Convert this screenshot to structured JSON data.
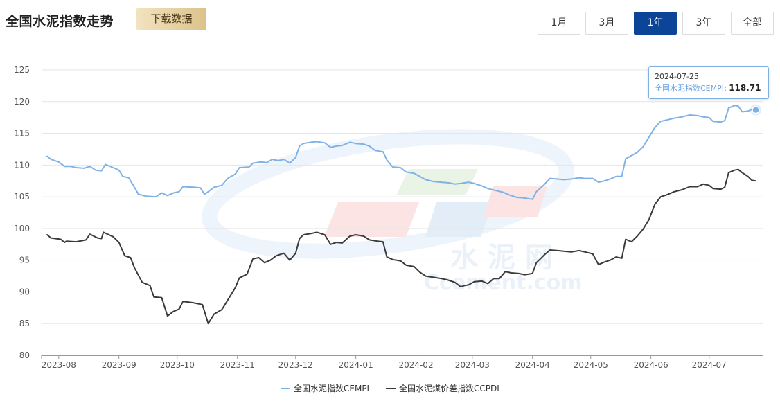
{
  "header": {
    "title": "全国水泥指数走势",
    "download_label": "下载数据"
  },
  "range_tabs": [
    {
      "label": "1月",
      "active": false
    },
    {
      "label": "3月",
      "active": false
    },
    {
      "label": "1年",
      "active": true
    },
    {
      "label": "3年",
      "active": false
    },
    {
      "label": "全部",
      "active": false
    }
  ],
  "tooltip": {
    "date": "2024-07-25",
    "series_name": "全国水泥指数CEMPI",
    "separator": ": ",
    "value": "118.71"
  },
  "watermark": {
    "text_cn": "水 泥 网",
    "text_en": "Ccement.com"
  },
  "colors": {
    "cempi": "#7eb2e6",
    "ccpdi": "#3a3a3a",
    "active_tab": "#0c4598",
    "gridline": "#e6e6e6"
  },
  "chart_data": {
    "type": "line",
    "title": "全国水泥指数走势",
    "xlabel": "",
    "ylabel": "",
    "ylim": [
      80,
      125
    ],
    "yticks": [
      80,
      85,
      90,
      95,
      100,
      105,
      110,
      115,
      120,
      125
    ],
    "xlim": [
      "2023-07-26",
      "2024-07-25"
    ],
    "xticks": [
      "2023-08",
      "2023-09",
      "2023-10",
      "2023-11",
      "2023-12",
      "2024-01",
      "2024-02",
      "2024-03",
      "2024-04",
      "2024-05",
      "2024-06",
      "2024-07"
    ],
    "grid": true,
    "legend_position": "bottom",
    "series": [
      {
        "name": "全国水泥指数CEMPI",
        "color": "#7eb2e6",
        "points": [
          [
            "2023-07-26",
            111.4
          ],
          [
            "2023-07-28",
            110.9
          ],
          [
            "2023-08-01",
            110.5
          ],
          [
            "2023-08-04",
            109.8
          ],
          [
            "2023-08-07",
            109.8
          ],
          [
            "2023-08-10",
            109.6
          ],
          [
            "2023-08-14",
            109.5
          ],
          [
            "2023-08-17",
            109.8
          ],
          [
            "2023-08-20",
            109.2
          ],
          [
            "2023-08-23",
            109.1
          ],
          [
            "2023-08-25",
            110.1
          ],
          [
            "2023-08-29",
            109.6
          ],
          [
            "2023-09-01",
            109.2
          ],
          [
            "2023-09-03",
            108.2
          ],
          [
            "2023-09-06",
            108.0
          ],
          [
            "2023-09-09",
            106.5
          ],
          [
            "2023-09-11",
            105.4
          ],
          [
            "2023-09-15",
            105.1
          ],
          [
            "2023-09-20",
            105.0
          ],
          [
            "2023-09-23",
            105.6
          ],
          [
            "2023-09-26",
            105.2
          ],
          [
            "2023-09-29",
            105.6
          ],
          [
            "2023-10-02",
            105.8
          ],
          [
            "2023-10-04",
            106.6
          ],
          [
            "2023-10-10",
            106.5
          ],
          [
            "2023-10-13",
            106.4
          ],
          [
            "2023-10-15",
            105.4
          ],
          [
            "2023-10-17",
            105.8
          ],
          [
            "2023-10-20",
            106.5
          ],
          [
            "2023-10-24",
            106.8
          ],
          [
            "2023-10-27",
            107.9
          ],
          [
            "2023-10-31",
            108.6
          ],
          [
            "2023-11-02",
            109.6
          ],
          [
            "2023-11-07",
            109.7
          ],
          [
            "2023-11-09",
            110.3
          ],
          [
            "2023-11-13",
            110.5
          ],
          [
            "2023-11-16",
            110.4
          ],
          [
            "2023-11-19",
            110.9
          ],
          [
            "2023-11-22",
            110.7
          ],
          [
            "2023-11-25",
            110.9
          ],
          [
            "2023-11-28",
            110.3
          ],
          [
            "2023-12-01",
            111.2
          ],
          [
            "2023-12-03",
            113.0
          ],
          [
            "2023-12-05",
            113.4
          ],
          [
            "2023-12-09",
            113.6
          ],
          [
            "2023-12-12",
            113.7
          ],
          [
            "2023-12-16",
            113.5
          ],
          [
            "2023-12-19",
            112.8
          ],
          [
            "2023-12-22",
            113.0
          ],
          [
            "2023-12-25",
            113.1
          ],
          [
            "2023-12-29",
            113.6
          ],
          [
            "2024-01-01",
            113.4
          ],
          [
            "2024-01-05",
            113.3
          ],
          [
            "2024-01-08",
            113.0
          ],
          [
            "2024-01-11",
            112.3
          ],
          [
            "2024-01-15",
            112.1
          ],
          [
            "2024-01-17",
            110.8
          ],
          [
            "2024-01-20",
            109.7
          ],
          [
            "2024-01-24",
            109.6
          ],
          [
            "2024-01-27",
            108.9
          ],
          [
            "2024-01-31",
            108.7
          ],
          [
            "2024-02-03",
            108.2
          ],
          [
            "2024-02-06",
            107.7
          ],
          [
            "2024-02-10",
            107.4
          ],
          [
            "2024-02-14",
            107.3
          ],
          [
            "2024-02-18",
            107.2
          ],
          [
            "2024-02-21",
            107.0
          ],
          [
            "2024-02-24",
            107.1
          ],
          [
            "2024-02-28",
            107.3
          ],
          [
            "2024-03-02",
            107.1
          ],
          [
            "2024-03-06",
            106.7
          ],
          [
            "2024-03-09",
            106.3
          ],
          [
            "2024-03-13",
            106.0
          ],
          [
            "2024-03-17",
            105.7
          ],
          [
            "2024-03-20",
            105.3
          ],
          [
            "2024-03-24",
            104.9
          ],
          [
            "2024-03-28",
            104.8
          ],
          [
            "2024-04-01",
            104.6
          ],
          [
            "2024-04-03",
            105.8
          ],
          [
            "2024-04-07",
            106.9
          ],
          [
            "2024-04-10",
            107.9
          ],
          [
            "2024-04-14",
            107.8
          ],
          [
            "2024-04-17",
            107.7
          ],
          [
            "2024-04-21",
            107.8
          ],
          [
            "2024-04-25",
            108.0
          ],
          [
            "2024-04-28",
            107.9
          ],
          [
            "2024-05-02",
            107.9
          ],
          [
            "2024-05-05",
            107.3
          ],
          [
            "2024-05-08",
            107.5
          ],
          [
            "2024-05-11",
            107.8
          ],
          [
            "2024-05-14",
            108.2
          ],
          [
            "2024-05-17",
            108.2
          ],
          [
            "2024-05-19",
            111.0
          ],
          [
            "2024-05-22",
            111.5
          ],
          [
            "2024-05-25",
            112.0
          ],
          [
            "2024-05-28",
            112.9
          ],
          [
            "2024-05-31",
            114.4
          ],
          [
            "2024-06-03",
            115.9
          ],
          [
            "2024-06-06",
            116.9
          ],
          [
            "2024-06-09",
            117.1
          ],
          [
            "2024-06-13",
            117.4
          ],
          [
            "2024-06-17",
            117.6
          ],
          [
            "2024-06-21",
            117.9
          ],
          [
            "2024-06-25",
            117.8
          ],
          [
            "2024-06-28",
            117.6
          ],
          [
            "2024-07-01",
            117.5
          ],
          [
            "2024-07-03",
            116.9
          ],
          [
            "2024-07-07",
            116.8
          ],
          [
            "2024-07-09",
            117.0
          ],
          [
            "2024-07-11",
            119.0
          ],
          [
            "2024-07-14",
            119.4
          ],
          [
            "2024-07-16",
            119.3
          ],
          [
            "2024-07-18",
            118.4
          ],
          [
            "2024-07-21",
            118.5
          ],
          [
            "2024-07-23",
            118.8
          ],
          [
            "2024-07-25",
            118.71
          ]
        ]
      },
      {
        "name": "全国水泥煤价差指数CCPDI",
        "color": "#3a3a3a",
        "points": [
          [
            "2023-07-26",
            99.0
          ],
          [
            "2023-07-28",
            98.5
          ],
          [
            "2023-08-02",
            98.3
          ],
          [
            "2023-08-04",
            97.8
          ],
          [
            "2023-08-05",
            98.0
          ],
          [
            "2023-08-10",
            97.9
          ],
          [
            "2023-08-15",
            98.2
          ],
          [
            "2023-08-17",
            99.1
          ],
          [
            "2023-08-21",
            98.5
          ],
          [
            "2023-08-23",
            98.4
          ],
          [
            "2023-08-24",
            99.4
          ],
          [
            "2023-08-29",
            98.7
          ],
          [
            "2023-09-01",
            97.8
          ],
          [
            "2023-09-04",
            95.7
          ],
          [
            "2023-09-07",
            95.4
          ],
          [
            "2023-09-09",
            93.8
          ],
          [
            "2023-09-13",
            91.5
          ],
          [
            "2023-09-17",
            91.0
          ],
          [
            "2023-09-19",
            89.2
          ],
          [
            "2023-09-23",
            89.1
          ],
          [
            "2023-09-26",
            86.2
          ],
          [
            "2023-09-29",
            86.9
          ],
          [
            "2023-10-02",
            87.3
          ],
          [
            "2023-10-04",
            88.5
          ],
          [
            "2023-10-09",
            88.3
          ],
          [
            "2023-10-14",
            88.0
          ],
          [
            "2023-10-17",
            85.0
          ],
          [
            "2023-10-20",
            86.5
          ],
          [
            "2023-10-24",
            87.2
          ],
          [
            "2023-10-27",
            88.7
          ],
          [
            "2023-10-31",
            90.7
          ],
          [
            "2023-11-02",
            92.2
          ],
          [
            "2023-11-06",
            92.8
          ],
          [
            "2023-11-09",
            95.2
          ],
          [
            "2023-11-12",
            95.4
          ],
          [
            "2023-11-15",
            94.6
          ],
          [
            "2023-11-18",
            95.0
          ],
          [
            "2023-11-21",
            95.7
          ],
          [
            "2023-11-25",
            96.1
          ],
          [
            "2023-11-28",
            95.0
          ],
          [
            "2023-12-01",
            96.1
          ],
          [
            "2023-12-03",
            98.4
          ],
          [
            "2023-12-05",
            99.0
          ],
          [
            "2023-12-09",
            99.2
          ],
          [
            "2023-12-12",
            99.4
          ],
          [
            "2023-12-16",
            99.0
          ],
          [
            "2023-12-19",
            97.5
          ],
          [
            "2023-12-22",
            97.8
          ],
          [
            "2023-12-25",
            97.7
          ],
          [
            "2023-12-29",
            98.8
          ],
          [
            "2024-01-01",
            99.0
          ],
          [
            "2024-01-05",
            98.8
          ],
          [
            "2024-01-08",
            98.2
          ],
          [
            "2024-01-12",
            98.0
          ],
          [
            "2024-01-15",
            97.9
          ],
          [
            "2024-01-17",
            95.5
          ],
          [
            "2024-01-20",
            95.1
          ],
          [
            "2024-01-24",
            94.9
          ],
          [
            "2024-01-27",
            94.2
          ],
          [
            "2024-01-31",
            94.0
          ],
          [
            "2024-02-03",
            93.1
          ],
          [
            "2024-02-06",
            92.5
          ],
          [
            "2024-02-10",
            92.3
          ],
          [
            "2024-02-14",
            92.1
          ],
          [
            "2024-02-17",
            91.9
          ],
          [
            "2024-02-21",
            91.5
          ],
          [
            "2024-02-24",
            90.8
          ],
          [
            "2024-02-26",
            91.0
          ],
          [
            "2024-02-28",
            91.1
          ],
          [
            "2024-03-02",
            91.6
          ],
          [
            "2024-03-06",
            91.7
          ],
          [
            "2024-03-09",
            91.3
          ],
          [
            "2024-03-12",
            92.1
          ],
          [
            "2024-03-15",
            92.1
          ],
          [
            "2024-03-18",
            93.2
          ],
          [
            "2024-03-21",
            93.0
          ],
          [
            "2024-03-25",
            92.9
          ],
          [
            "2024-03-28",
            92.7
          ],
          [
            "2024-04-01",
            92.9
          ],
          [
            "2024-04-03",
            94.6
          ],
          [
            "2024-04-07",
            95.8
          ],
          [
            "2024-04-10",
            96.6
          ],
          [
            "2024-04-14",
            96.5
          ],
          [
            "2024-04-17",
            96.4
          ],
          [
            "2024-04-21",
            96.3
          ],
          [
            "2024-04-25",
            96.5
          ],
          [
            "2024-04-28",
            96.3
          ],
          [
            "2024-05-02",
            96.0
          ],
          [
            "2024-05-05",
            94.3
          ],
          [
            "2024-05-08",
            94.7
          ],
          [
            "2024-05-11",
            95.0
          ],
          [
            "2024-05-14",
            95.5
          ],
          [
            "2024-05-17",
            95.3
          ],
          [
            "2024-05-19",
            98.3
          ],
          [
            "2024-05-22",
            97.9
          ],
          [
            "2024-05-25",
            98.8
          ],
          [
            "2024-05-28",
            99.9
          ],
          [
            "2024-05-31",
            101.4
          ],
          [
            "2024-06-03",
            103.8
          ],
          [
            "2024-06-06",
            105.0
          ],
          [
            "2024-06-09",
            105.3
          ],
          [
            "2024-06-13",
            105.8
          ],
          [
            "2024-06-17",
            106.1
          ],
          [
            "2024-06-21",
            106.6
          ],
          [
            "2024-06-25",
            106.6
          ],
          [
            "2024-06-28",
            107.0
          ],
          [
            "2024-07-01",
            106.8
          ],
          [
            "2024-07-03",
            106.3
          ],
          [
            "2024-07-07",
            106.2
          ],
          [
            "2024-07-09",
            106.5
          ],
          [
            "2024-07-11",
            108.8
          ],
          [
            "2024-07-14",
            109.2
          ],
          [
            "2024-07-16",
            109.3
          ],
          [
            "2024-07-18",
            108.8
          ],
          [
            "2024-07-21",
            108.2
          ],
          [
            "2024-07-23",
            107.6
          ],
          [
            "2024-07-25",
            107.5
          ]
        ]
      }
    ]
  }
}
